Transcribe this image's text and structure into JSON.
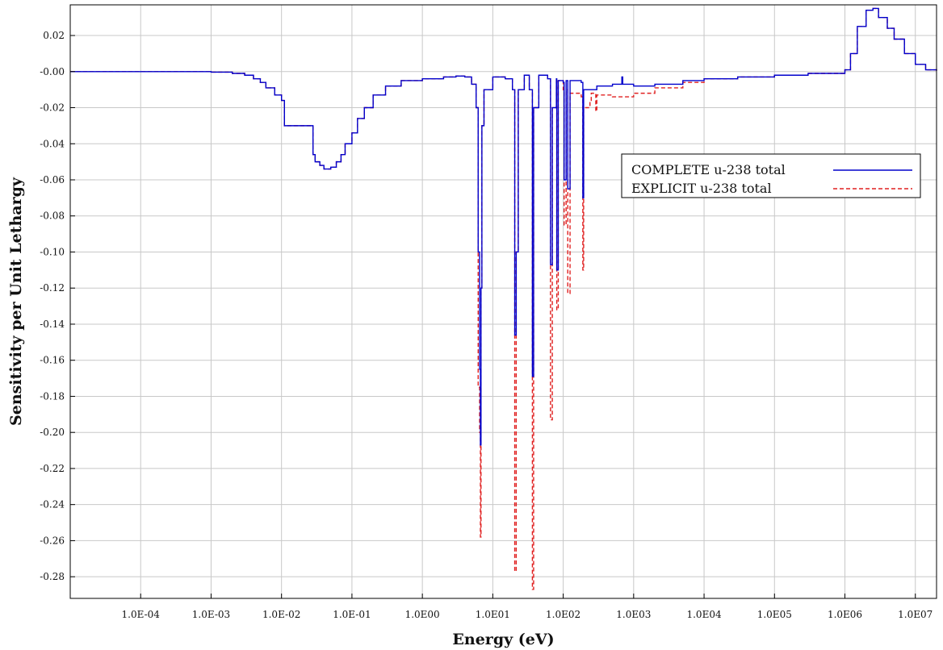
{
  "chart_data": {
    "type": "line",
    "title": "",
    "xlabel": "Energy (eV)",
    "ylabel": "Sensitivity per Unit Lethargy",
    "x_scale": "log",
    "xlim": [
      1e-05,
      20000000
    ],
    "ylim": [
      -0.292,
      0.037
    ],
    "grid": true,
    "legend_position": "right",
    "x_ticks": [
      {
        "value": 0.0001,
        "label": "1.0E-04"
      },
      {
        "value": 0.001,
        "label": "1.0E-03"
      },
      {
        "value": 0.01,
        "label": "1.0E-02"
      },
      {
        "value": 0.1,
        "label": "1.0E-01"
      },
      {
        "value": 1,
        "label": "1.0E00"
      },
      {
        "value": 10,
        "label": "1.0E01"
      },
      {
        "value": 100,
        "label": "1.0E02"
      },
      {
        "value": 1000,
        "label": "1.0E03"
      },
      {
        "value": 10000,
        "label": "1.0E04"
      },
      {
        "value": 100000,
        "label": "1.0E05"
      },
      {
        "value": 1000000,
        "label": "1.0E06"
      },
      {
        "value": 10000000,
        "label": "1.0E07"
      }
    ],
    "y_ticks": [
      {
        "value": 0.02,
        "label": "0.02"
      },
      {
        "value": 0.0,
        "label": "-0.00"
      },
      {
        "value": -0.02,
        "label": "-0.02"
      },
      {
        "value": -0.04,
        "label": "-0.04"
      },
      {
        "value": -0.06,
        "label": "-0.06"
      },
      {
        "value": -0.08,
        "label": "-0.08"
      },
      {
        "value": -0.1,
        "label": "-0.10"
      },
      {
        "value": -0.12,
        "label": "-0.12"
      },
      {
        "value": -0.14,
        "label": "-0.14"
      },
      {
        "value": -0.16,
        "label": "-0.16"
      },
      {
        "value": -0.18,
        "label": "-0.18"
      },
      {
        "value": -0.2,
        "label": "-0.20"
      },
      {
        "value": -0.22,
        "label": "-0.22"
      },
      {
        "value": -0.24,
        "label": "-0.24"
      },
      {
        "value": -0.26,
        "label": "-0.26"
      },
      {
        "value": -0.28,
        "label": "-0.28"
      }
    ],
    "series": [
      {
        "name": "COMPLETE u-238 total",
        "color": "#0000cc",
        "dash": "solid",
        "points": [
          [
            1e-05,
            0
          ],
          [
            0.0003,
            0
          ],
          [
            0.0005,
            0
          ],
          [
            0.001,
            -0.0003
          ],
          [
            0.002,
            -0.001
          ],
          [
            0.003,
            -0.002
          ],
          [
            0.004,
            -0.004
          ],
          [
            0.005,
            -0.006
          ],
          [
            0.006,
            -0.009
          ],
          [
            0.008,
            -0.013
          ],
          [
            0.01,
            -0.016
          ],
          [
            0.011,
            -0.03
          ],
          [
            0.025,
            -0.03
          ],
          [
            0.028,
            -0.046
          ],
          [
            0.03,
            -0.05
          ],
          [
            0.035,
            -0.052
          ],
          [
            0.04,
            -0.054
          ],
          [
            0.05,
            -0.053
          ],
          [
            0.06,
            -0.05
          ],
          [
            0.07,
            -0.046
          ],
          [
            0.08,
            -0.04
          ],
          [
            0.1,
            -0.034
          ],
          [
            0.12,
            -0.026
          ],
          [
            0.15,
            -0.02
          ],
          [
            0.2,
            -0.013
          ],
          [
            0.3,
            -0.008
          ],
          [
            0.5,
            -0.005
          ],
          [
            1,
            -0.004
          ],
          [
            2,
            -0.003
          ],
          [
            3,
            -0.0025
          ],
          [
            4,
            -0.003
          ],
          [
            5,
            -0.007
          ],
          [
            5.8,
            -0.02
          ],
          [
            6.2,
            -0.1
          ],
          [
            6.5,
            -0.165
          ],
          [
            6.67,
            -0.207
          ],
          [
            6.8,
            -0.12
          ],
          [
            7.0,
            -0.03
          ],
          [
            7.5,
            -0.01
          ],
          [
            10,
            -0.003
          ],
          [
            15,
            -0.004
          ],
          [
            19,
            -0.01
          ],
          [
            20.5,
            -0.146
          ],
          [
            21.5,
            -0.1
          ],
          [
            23,
            -0.01
          ],
          [
            28,
            -0.002
          ],
          [
            33,
            -0.01
          ],
          [
            36.5,
            -0.169
          ],
          [
            38,
            -0.02
          ],
          [
            45,
            -0.002
          ],
          [
            60,
            -0.004
          ],
          [
            66,
            -0.107
          ],
          [
            70,
            -0.02
          ],
          [
            80,
            -0.004
          ],
          [
            81,
            -0.11
          ],
          [
            85,
            -0.005
          ],
          [
            100,
            -0.006
          ],
          [
            103,
            -0.06
          ],
          [
            110,
            -0.005
          ],
          [
            116,
            -0.065
          ],
          [
            125,
            -0.005
          ],
          [
            180,
            -0.006
          ],
          [
            190,
            -0.07
          ],
          [
            195,
            -0.01
          ],
          [
            300,
            -0.008
          ],
          [
            500,
            -0.007
          ],
          [
            680,
            -0.003
          ],
          [
            700,
            -0.007
          ],
          [
            1000,
            -0.008
          ],
          [
            2000,
            -0.007
          ],
          [
            5000,
            -0.005
          ],
          [
            10000,
            -0.004
          ],
          [
            30000,
            -0.003
          ],
          [
            100000,
            -0.002
          ],
          [
            300000,
            -0.001
          ],
          [
            1000000,
            0.001
          ],
          [
            1200000,
            0.01
          ],
          [
            1500000,
            0.025
          ],
          [
            2000000,
            0.034
          ],
          [
            2500000,
            0.035
          ],
          [
            3000000,
            0.03
          ],
          [
            4000000,
            0.024
          ],
          [
            5000000,
            0.018
          ],
          [
            7000000,
            0.01
          ],
          [
            10000000,
            0.004
          ],
          [
            14000000,
            0.001
          ],
          [
            20000000,
            0.0005
          ]
        ]
      },
      {
        "name": "EXPLICIT u-238 total",
        "color": "#e02020",
        "dash": "dashed",
        "points": [
          [
            1e-05,
            0
          ],
          [
            0.0003,
            0
          ],
          [
            0.0005,
            0
          ],
          [
            0.001,
            -0.0003
          ],
          [
            0.002,
            -0.001
          ],
          [
            0.003,
            -0.002
          ],
          [
            0.004,
            -0.004
          ],
          [
            0.005,
            -0.006
          ],
          [
            0.006,
            -0.009
          ],
          [
            0.008,
            -0.013
          ],
          [
            0.01,
            -0.016
          ],
          [
            0.011,
            -0.03
          ],
          [
            0.025,
            -0.03
          ],
          [
            0.028,
            -0.046
          ],
          [
            0.03,
            -0.05
          ],
          [
            0.035,
            -0.052
          ],
          [
            0.04,
            -0.054
          ],
          [
            0.05,
            -0.053
          ],
          [
            0.06,
            -0.05
          ],
          [
            0.07,
            -0.046
          ],
          [
            0.08,
            -0.04
          ],
          [
            0.1,
            -0.034
          ],
          [
            0.12,
            -0.026
          ],
          [
            0.15,
            -0.02
          ],
          [
            0.2,
            -0.013
          ],
          [
            0.3,
            -0.008
          ],
          [
            0.5,
            -0.005
          ],
          [
            1,
            -0.004
          ],
          [
            2,
            -0.003
          ],
          [
            3,
            -0.0025
          ],
          [
            4,
            -0.003
          ],
          [
            5,
            -0.007
          ],
          [
            5.8,
            -0.02
          ],
          [
            6.2,
            -0.175
          ],
          [
            6.5,
            -0.2
          ],
          [
            6.67,
            -0.258
          ],
          [
            6.8,
            -0.12
          ],
          [
            7.0,
            -0.03
          ],
          [
            7.5,
            -0.01
          ],
          [
            10,
            -0.003
          ],
          [
            15,
            -0.004
          ],
          [
            19,
            -0.01
          ],
          [
            20.5,
            -0.277
          ],
          [
            21.5,
            -0.1
          ],
          [
            23,
            -0.01
          ],
          [
            28,
            -0.002
          ],
          [
            33,
            -0.01
          ],
          [
            36.5,
            -0.287
          ],
          [
            38,
            -0.02
          ],
          [
            45,
            -0.002
          ],
          [
            60,
            -0.004
          ],
          [
            66,
            -0.193
          ],
          [
            70,
            -0.02
          ],
          [
            80,
            -0.004
          ],
          [
            81,
            -0.132
          ],
          [
            85,
            -0.005
          ],
          [
            100,
            -0.01
          ],
          [
            103,
            -0.085
          ],
          [
            110,
            -0.01
          ],
          [
            116,
            -0.123
          ],
          [
            125,
            -0.012
          ],
          [
            180,
            -0.014
          ],
          [
            190,
            -0.11
          ],
          [
            195,
            -0.02
          ],
          [
            240,
            -0.016
          ],
          [
            250,
            -0.012
          ],
          [
            290,
            -0.022
          ],
          [
            300,
            -0.013
          ],
          [
            500,
            -0.014
          ],
          [
            1000,
            -0.012
          ],
          [
            2000,
            -0.009
          ],
          [
            5000,
            -0.006
          ],
          [
            10000,
            -0.004
          ],
          [
            30000,
            -0.003
          ],
          [
            100000,
            -0.002
          ],
          [
            300000,
            -0.001
          ],
          [
            1000000,
            0.001
          ],
          [
            1200000,
            0.01
          ],
          [
            1500000,
            0.025
          ],
          [
            2000000,
            0.034
          ],
          [
            2500000,
            0.035
          ],
          [
            3000000,
            0.03
          ],
          [
            4000000,
            0.024
          ],
          [
            5000000,
            0.018
          ],
          [
            7000000,
            0.01
          ],
          [
            10000000,
            0.004
          ],
          [
            14000000,
            0.001
          ],
          [
            20000000,
            0.0005
          ]
        ]
      }
    ]
  }
}
